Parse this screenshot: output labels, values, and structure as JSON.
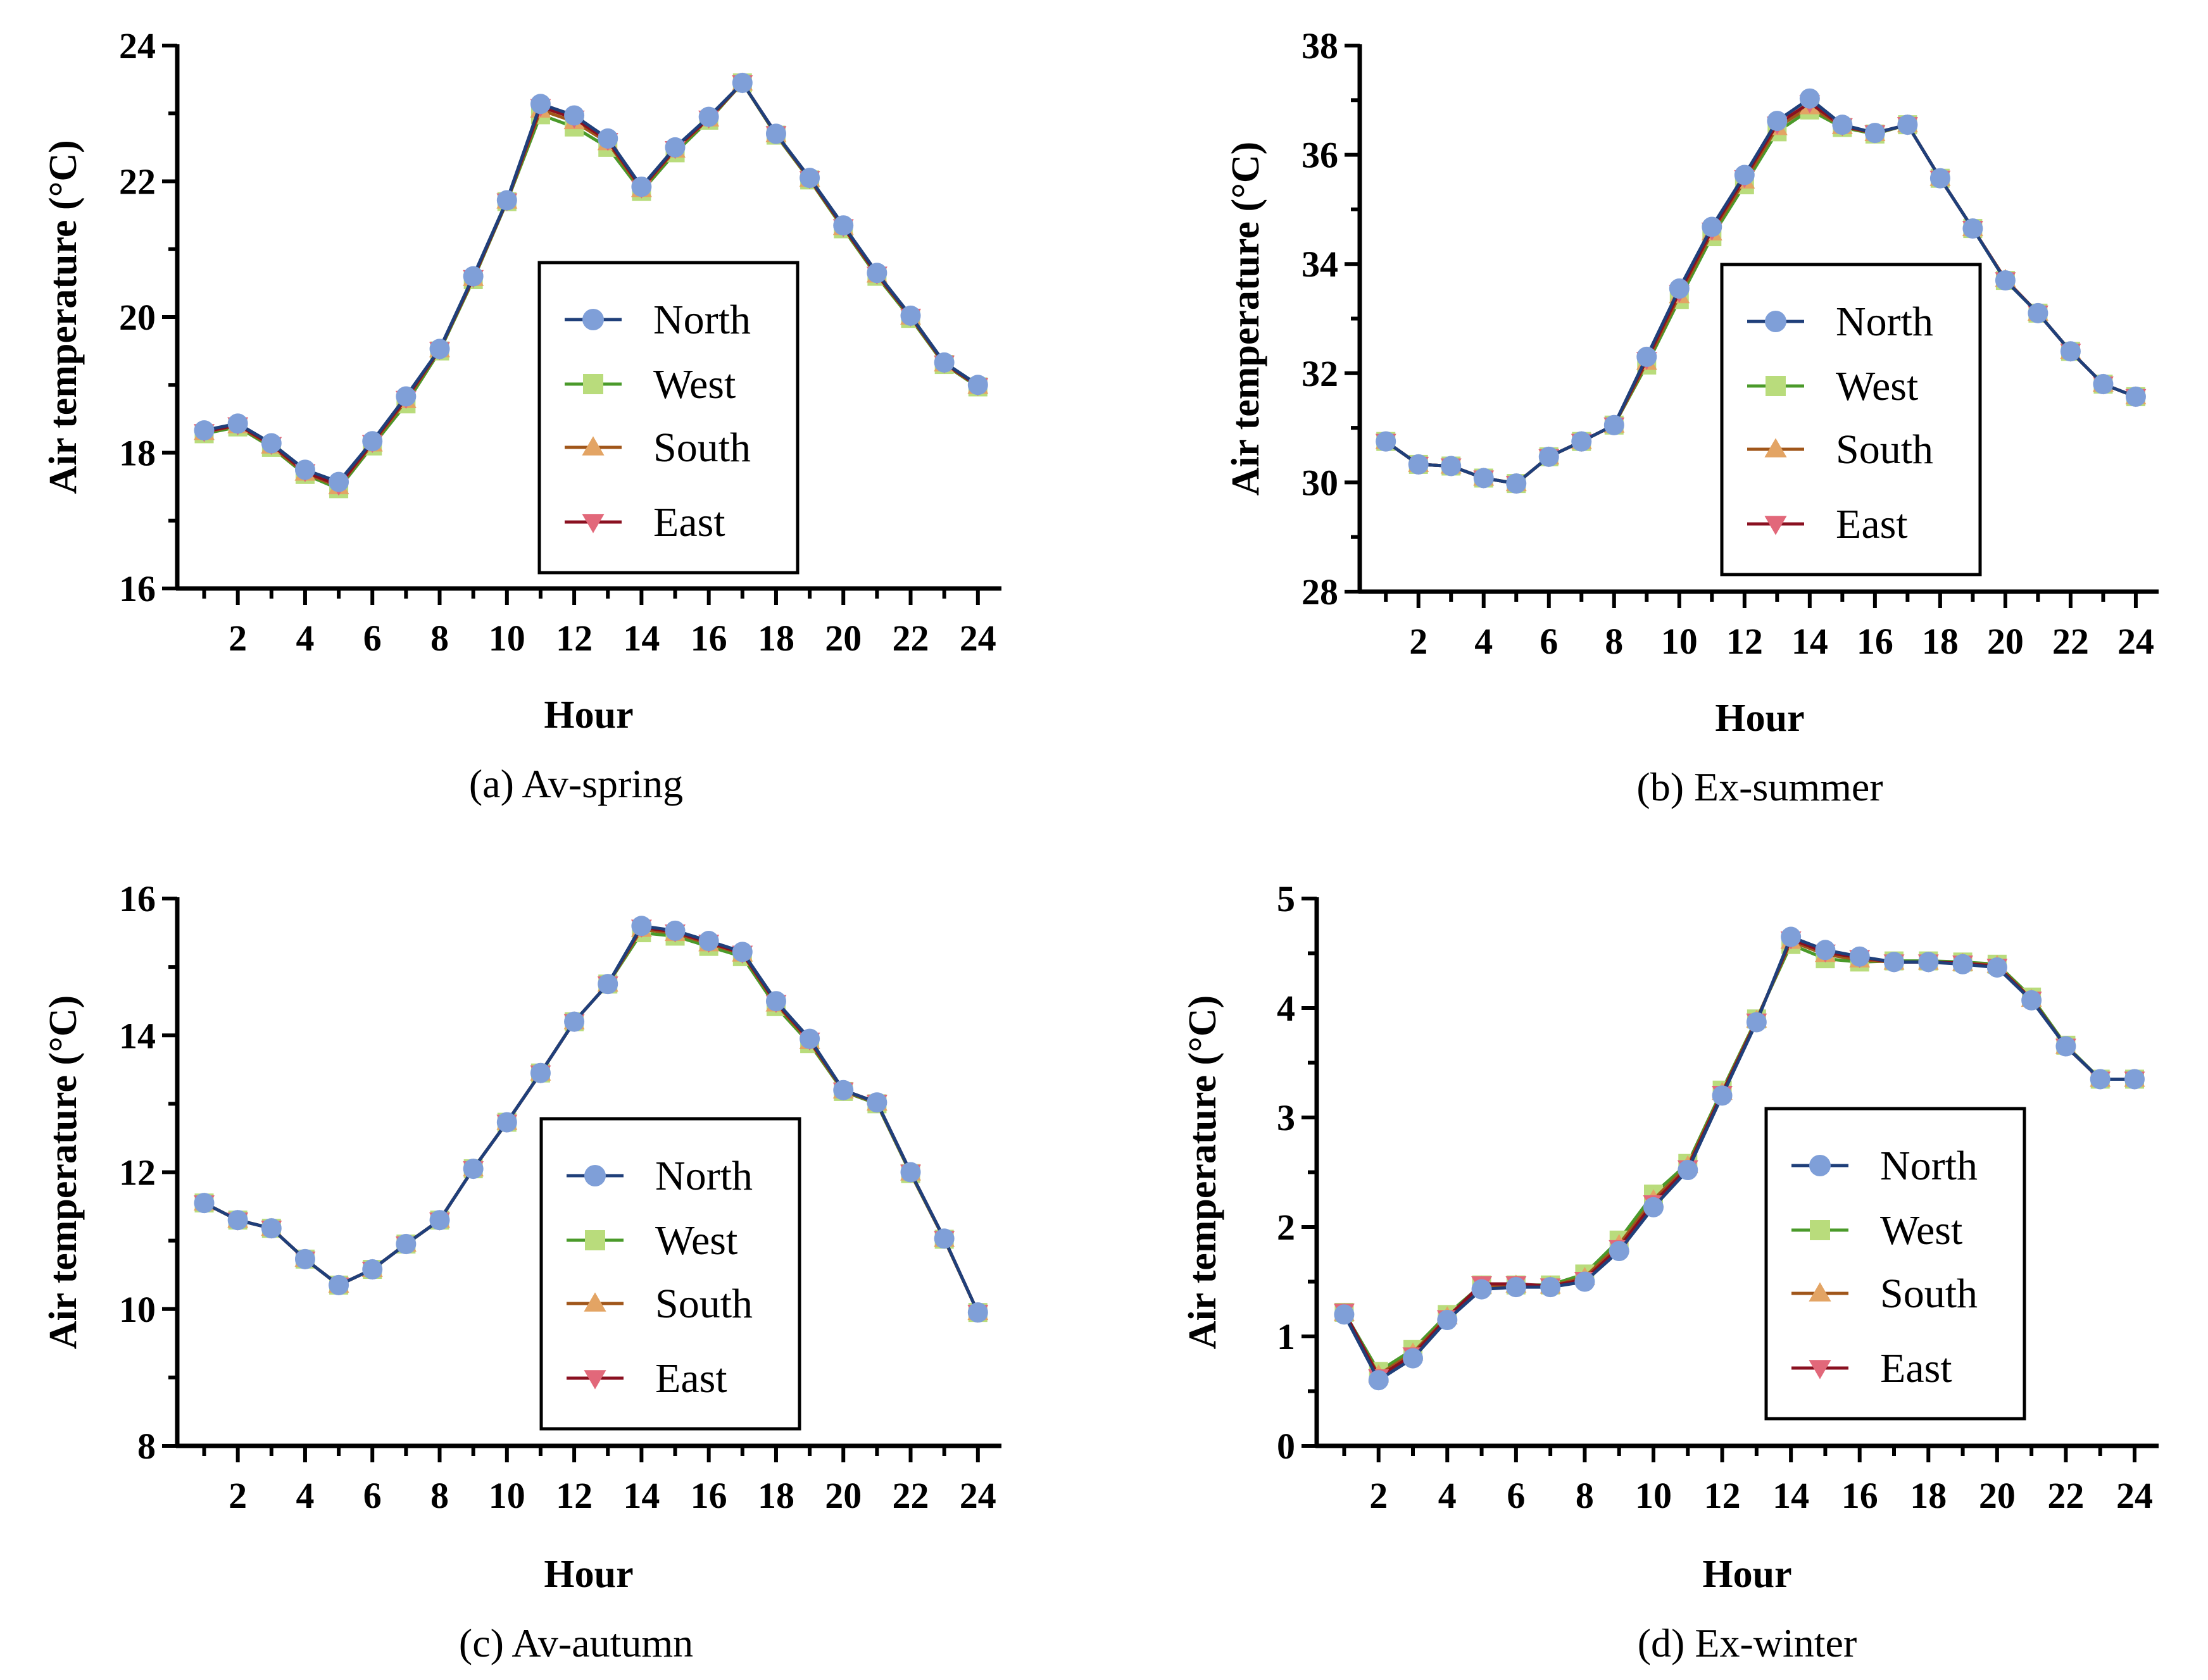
{
  "chart_data": [
    {
      "type": "line",
      "title": "(a) Av-spring",
      "xlabel": "Hour",
      "ylabel": "Air temperature (°C)",
      "xlim": [
        0.2,
        24.7
      ],
      "ylim": [
        16,
        24
      ],
      "yticks": [
        16,
        18,
        20,
        22,
        24
      ],
      "xticks": [
        2,
        4,
        6,
        8,
        10,
        12,
        14,
        16,
        18,
        20,
        22,
        24
      ],
      "x": [
        1,
        2,
        3,
        4,
        5,
        6,
        7,
        8,
        9,
        10,
        11,
        12,
        13,
        14,
        15,
        16,
        17,
        18,
        19,
        20,
        21,
        22,
        23,
        24
      ],
      "legend": "center-right",
      "series": [
        {
          "name": "North",
          "values": [
            18.33,
            18.43,
            18.14,
            17.75,
            17.57,
            18.17,
            18.83,
            19.53,
            20.6,
            21.72,
            23.14,
            22.97,
            22.63,
            21.92,
            22.5,
            22.95,
            23.45,
            22.7,
            22.05,
            21.35,
            20.65,
            20.02,
            19.33,
            19.0
          ]
        },
        {
          "name": "West",
          "values": [
            18.28,
            18.38,
            18.08,
            17.68,
            17.47,
            18.1,
            18.72,
            19.5,
            20.55,
            21.7,
            22.98,
            22.8,
            22.5,
            21.85,
            22.42,
            22.9,
            23.45,
            22.68,
            22.02,
            21.3,
            20.6,
            19.98,
            19.3,
            18.97
          ]
        },
        {
          "name": "South",
          "values": [
            18.3,
            18.4,
            18.1,
            17.7,
            17.5,
            18.13,
            18.77,
            19.52,
            20.57,
            21.71,
            23.05,
            22.88,
            22.57,
            21.88,
            22.46,
            22.92,
            23.45,
            22.69,
            22.03,
            21.32,
            20.62,
            20.0,
            19.31,
            18.98
          ]
        },
        {
          "name": "East",
          "values": [
            18.31,
            18.41,
            18.12,
            17.72,
            17.52,
            18.15,
            18.8,
            19.52,
            20.58,
            21.71,
            23.1,
            22.93,
            22.6,
            21.9,
            22.48,
            22.93,
            23.45,
            22.7,
            22.04,
            21.33,
            20.63,
            20.01,
            19.32,
            18.99
          ]
        }
      ]
    },
    {
      "type": "line",
      "title": "(b) Ex-summer",
      "xlabel": "Hour",
      "ylabel": "Air temperature (°C)",
      "xlim": [
        0.2,
        24.7
      ],
      "ylim": [
        28,
        38
      ],
      "yticks": [
        28,
        30,
        32,
        34,
        36,
        38
      ],
      "xticks": [
        2,
        4,
        6,
        8,
        10,
        12,
        14,
        16,
        18,
        20,
        22,
        24
      ],
      "x": [
        1,
        2,
        3,
        4,
        5,
        6,
        7,
        8,
        9,
        10,
        11,
        12,
        13,
        14,
        15,
        16,
        17,
        18,
        19,
        20,
        21,
        22,
        23,
        24
      ],
      "legend": "center-right",
      "series": [
        {
          "name": "North",
          "values": [
            30.75,
            30.33,
            30.3,
            30.08,
            29.98,
            30.47,
            30.75,
            31.05,
            32.3,
            33.55,
            34.68,
            35.63,
            36.62,
            37.03,
            36.55,
            36.4,
            36.55,
            35.57,
            34.65,
            33.7,
            33.1,
            32.4,
            31.8,
            31.57
          ]
        },
        {
          "name": "West",
          "values": [
            30.75,
            30.33,
            30.3,
            30.08,
            29.98,
            30.47,
            30.75,
            31.05,
            32.15,
            33.35,
            34.5,
            35.45,
            36.42,
            36.82,
            36.5,
            36.38,
            36.55,
            35.57,
            34.65,
            33.7,
            33.1,
            32.4,
            31.8,
            31.57
          ]
        },
        {
          "name": "South",
          "values": [
            30.75,
            30.33,
            30.3,
            30.08,
            29.98,
            30.47,
            30.75,
            31.05,
            32.2,
            33.42,
            34.57,
            35.52,
            36.5,
            36.88,
            36.52,
            36.39,
            36.55,
            35.57,
            34.65,
            33.72,
            33.1,
            32.4,
            31.8,
            31.57
          ]
        },
        {
          "name": "East",
          "values": [
            30.75,
            30.33,
            30.3,
            30.08,
            29.98,
            30.47,
            30.75,
            31.05,
            32.25,
            33.48,
            34.62,
            35.58,
            36.56,
            36.95,
            36.53,
            36.4,
            36.55,
            35.57,
            34.65,
            33.71,
            33.1,
            32.4,
            31.8,
            31.57
          ]
        }
      ]
    },
    {
      "type": "line",
      "title": "(c) Av-autumn",
      "xlabel": "Hour",
      "ylabel": "Air temperature (°C)",
      "xlim": [
        0.2,
        24.7
      ],
      "ylim": [
        8,
        16
      ],
      "yticks": [
        8,
        10,
        12,
        14,
        16
      ],
      "xticks": [
        2,
        4,
        6,
        8,
        10,
        12,
        14,
        16,
        18,
        20,
        22,
        24
      ],
      "x": [
        1,
        2,
        3,
        4,
        5,
        6,
        7,
        8,
        9,
        10,
        11,
        12,
        13,
        14,
        15,
        16,
        17,
        18,
        19,
        20,
        21,
        22,
        23,
        24
      ],
      "legend": "center-right",
      "series": [
        {
          "name": "North",
          "values": [
            11.55,
            11.3,
            11.18,
            10.73,
            10.35,
            10.58,
            10.95,
            11.3,
            12.05,
            12.73,
            13.45,
            14.2,
            14.75,
            15.6,
            15.53,
            15.38,
            15.22,
            14.5,
            13.95,
            13.2,
            13.02,
            12.0,
            11.03,
            9.95
          ]
        },
        {
          "name": "West",
          "values": [
            11.55,
            11.3,
            11.18,
            10.73,
            10.35,
            10.58,
            10.95,
            11.3,
            12.05,
            12.73,
            13.45,
            14.2,
            14.75,
            15.5,
            15.45,
            15.3,
            15.15,
            14.42,
            13.88,
            13.18,
            13.0,
            11.98,
            11.02,
            9.95
          ]
        },
        {
          "name": "South",
          "values": [
            11.55,
            11.3,
            11.18,
            10.73,
            10.35,
            10.58,
            10.95,
            11.3,
            12.05,
            12.73,
            13.45,
            14.2,
            14.75,
            15.55,
            15.49,
            15.34,
            15.19,
            14.46,
            13.91,
            13.19,
            13.01,
            11.99,
            11.02,
            9.95
          ]
        },
        {
          "name": "East",
          "values": [
            11.55,
            11.3,
            11.18,
            10.73,
            10.35,
            10.58,
            10.95,
            11.3,
            12.05,
            12.73,
            13.45,
            14.2,
            14.75,
            15.58,
            15.51,
            15.36,
            15.2,
            14.48,
            13.93,
            13.2,
            13.02,
            12.0,
            11.03,
            9.95
          ]
        }
      ]
    },
    {
      "type": "line",
      "title": "(d) Ex-winter",
      "xlabel": "Hour",
      "ylabel": "Air temperature (°C)",
      "xlim": [
        0.2,
        24.7
      ],
      "ylim": [
        0,
        5
      ],
      "yticks": [
        0,
        1,
        2,
        3,
        4,
        5
      ],
      "xticks": [
        2,
        4,
        6,
        8,
        10,
        12,
        14,
        16,
        18,
        20,
        22,
        24
      ],
      "x": [
        1,
        2,
        3,
        4,
        5,
        6,
        7,
        8,
        9,
        10,
        11,
        12,
        13,
        14,
        15,
        16,
        17,
        18,
        19,
        20,
        21,
        22,
        23,
        24
      ],
      "legend": "center-right",
      "series": [
        {
          "name": "North",
          "values": [
            1.2,
            0.6,
            0.8,
            1.15,
            1.43,
            1.45,
            1.45,
            1.5,
            1.78,
            2.18,
            2.52,
            3.2,
            3.87,
            4.65,
            4.53,
            4.47,
            4.42,
            4.42,
            4.4,
            4.37,
            4.07,
            3.65,
            3.35,
            3.35
          ]
        },
        {
          "name": "West",
          "values": [
            1.22,
            0.68,
            0.88,
            1.2,
            1.47,
            1.47,
            1.47,
            1.57,
            1.88,
            2.3,
            2.58,
            3.25,
            3.9,
            4.58,
            4.45,
            4.42,
            4.43,
            4.43,
            4.42,
            4.4,
            4.1,
            3.66,
            3.35,
            3.35
          ]
        },
        {
          "name": "South",
          "values": [
            1.21,
            0.65,
            0.85,
            1.18,
            1.46,
            1.47,
            1.46,
            1.54,
            1.84,
            2.25,
            2.56,
            3.23,
            3.89,
            4.61,
            4.49,
            4.44,
            4.42,
            4.42,
            4.41,
            4.39,
            4.08,
            3.65,
            3.35,
            3.35
          ]
        },
        {
          "name": "East",
          "values": [
            1.23,
            0.63,
            0.83,
            1.17,
            1.48,
            1.48,
            1.46,
            1.52,
            1.81,
            2.22,
            2.54,
            3.22,
            3.88,
            4.63,
            4.51,
            4.46,
            4.42,
            4.42,
            4.41,
            4.38,
            4.08,
            3.65,
            3.35,
            3.35
          ]
        }
      ]
    }
  ],
  "styles": {
    "North": {
      "line": "#1f3f7a",
      "marker": "#7f9fd8",
      "shape": "circle"
    },
    "West": {
      "line": "#4a9a2a",
      "marker": "#b9dc7c",
      "shape": "square"
    },
    "South": {
      "line": "#a0561a",
      "marker": "#e3a464",
      "shape": "triangle-up"
    },
    "East": {
      "line": "#8a1020",
      "marker": "#e2687a",
      "shape": "triangle-down"
    }
  }
}
